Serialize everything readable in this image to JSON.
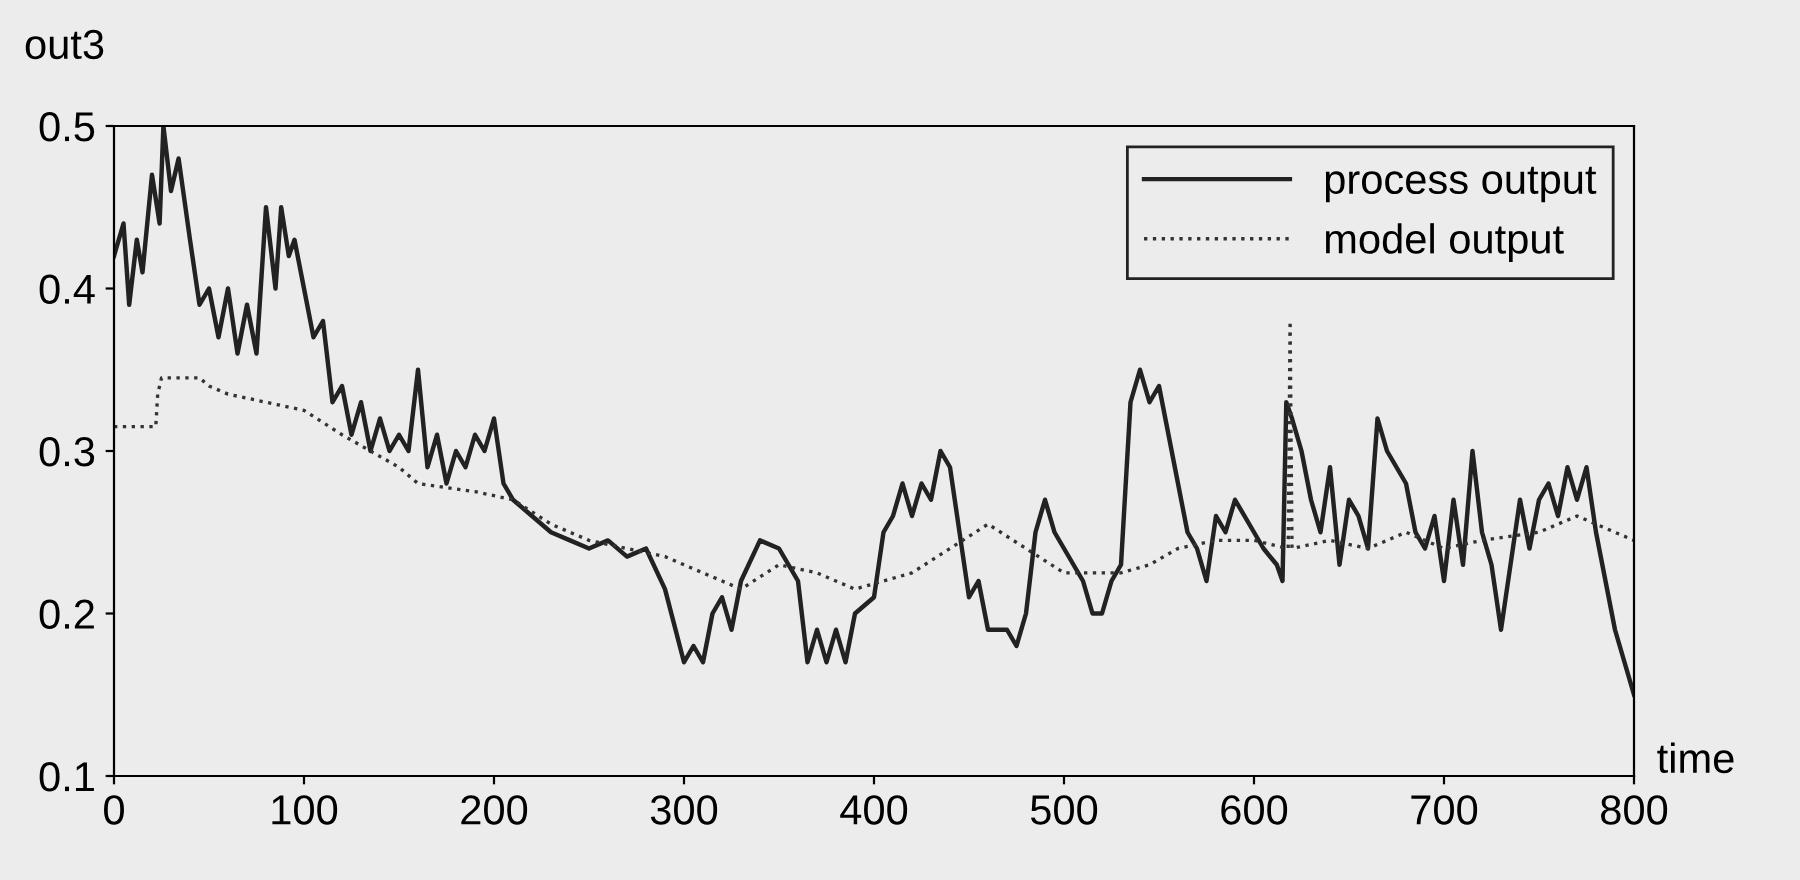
{
  "chart_data": {
    "type": "line",
    "xlabel": "time",
    "ylabel": "out3",
    "xlim": [
      0,
      800
    ],
    "xticks": [
      0,
      100,
      200,
      300,
      400,
      500,
      600,
      700,
      800
    ],
    "ylim": [
      0.1,
      0.5
    ],
    "yticks": [
      0.1,
      0.2,
      0.3,
      0.4,
      0.5
    ],
    "grid": false,
    "legend": "top right",
    "series": [
      {
        "name": "process output",
        "color": "#222222",
        "line_style": "solid",
        "x": [
          0,
          5,
          8,
          12,
          15,
          20,
          24,
          26,
          30,
          34,
          40,
          45,
          50,
          55,
          60,
          65,
          70,
          75,
          80,
          85,
          88,
          92,
          95,
          100,
          105,
          110,
          115,
          120,
          125,
          130,
          135,
          140,
          145,
          150,
          155,
          160,
          165,
          170,
          175,
          180,
          185,
          190,
          195,
          200,
          205,
          210,
          220,
          230,
          240,
          250,
          260,
          270,
          280,
          290,
          300,
          305,
          310,
          315,
          320,
          325,
          330,
          340,
          350,
          360,
          365,
          370,
          375,
          380,
          385,
          390,
          400,
          405,
          410,
          415,
          420,
          425,
          430,
          435,
          440,
          445,
          450,
          455,
          460,
          470,
          475,
          480,
          485,
          490,
          495,
          500,
          505,
          510,
          515,
          520,
          525,
          530,
          535,
          540,
          545,
          550,
          555,
          560,
          565,
          570,
          575,
          580,
          585,
          590,
          600,
          605,
          612,
          615,
          617,
          620,
          625,
          630,
          635,
          640,
          645,
          650,
          655,
          660,
          665,
          670,
          680,
          685,
          690,
          695,
          700,
          705,
          710,
          715,
          720,
          725,
          730,
          735,
          740,
          745,
          750,
          755,
          760,
          765,
          770,
          775,
          780,
          790,
          795,
          800
        ],
        "values": [
          0.42,
          0.44,
          0.39,
          0.43,
          0.41,
          0.47,
          0.44,
          0.5,
          0.46,
          0.48,
          0.43,
          0.39,
          0.4,
          0.37,
          0.4,
          0.36,
          0.39,
          0.36,
          0.45,
          0.4,
          0.45,
          0.42,
          0.43,
          0.4,
          0.37,
          0.38,
          0.33,
          0.34,
          0.31,
          0.33,
          0.3,
          0.32,
          0.3,
          0.31,
          0.3,
          0.35,
          0.29,
          0.31,
          0.28,
          0.3,
          0.29,
          0.31,
          0.3,
          0.32,
          0.28,
          0.27,
          0.26,
          0.25,
          0.245,
          0.24,
          0.245,
          0.235,
          0.24,
          0.215,
          0.17,
          0.18,
          0.17,
          0.2,
          0.21,
          0.19,
          0.22,
          0.245,
          0.24,
          0.22,
          0.17,
          0.19,
          0.17,
          0.19,
          0.17,
          0.2,
          0.21,
          0.25,
          0.26,
          0.28,
          0.26,
          0.28,
          0.27,
          0.3,
          0.29,
          0.25,
          0.21,
          0.22,
          0.19,
          0.19,
          0.18,
          0.2,
          0.25,
          0.27,
          0.25,
          0.24,
          0.23,
          0.22,
          0.2,
          0.2,
          0.22,
          0.23,
          0.33,
          0.35,
          0.33,
          0.34,
          0.31,
          0.28,
          0.25,
          0.24,
          0.22,
          0.26,
          0.25,
          0.27,
          0.25,
          0.24,
          0.23,
          0.22,
          0.33,
          0.32,
          0.3,
          0.27,
          0.25,
          0.29,
          0.23,
          0.27,
          0.26,
          0.24,
          0.32,
          0.3,
          0.28,
          0.25,
          0.24,
          0.26,
          0.22,
          0.27,
          0.23,
          0.3,
          0.25,
          0.23,
          0.19,
          0.23,
          0.27,
          0.24,
          0.27,
          0.28,
          0.26,
          0.29,
          0.27,
          0.29,
          0.25,
          0.19,
          0.17,
          0.15
        ]
      },
      {
        "name": "model output",
        "color": "#333333",
        "line_style": "dotted",
        "x": [
          0,
          22,
          23,
          25,
          45,
          50,
          60,
          80,
          100,
          120,
          150,
          160,
          190,
          210,
          230,
          250,
          270,
          290,
          310,
          330,
          350,
          370,
          390,
          420,
          440,
          460,
          480,
          500,
          530,
          545,
          560,
          580,
          600,
          618,
          619,
          620,
          640,
          660,
          680,
          700,
          720,
          750,
          770,
          790,
          800
        ],
        "values": [
          0.315,
          0.315,
          0.335,
          0.345,
          0.345,
          0.34,
          0.335,
          0.33,
          0.325,
          0.31,
          0.29,
          0.28,
          0.275,
          0.27,
          0.255,
          0.245,
          0.24,
          0.235,
          0.225,
          0.215,
          0.23,
          0.225,
          0.215,
          0.225,
          0.24,
          0.255,
          0.24,
          0.225,
          0.225,
          0.23,
          0.24,
          0.245,
          0.245,
          0.24,
          0.38,
          0.24,
          0.245,
          0.24,
          0.25,
          0.24,
          0.245,
          0.25,
          0.26,
          0.25,
          0.245
        ]
      }
    ]
  }
}
